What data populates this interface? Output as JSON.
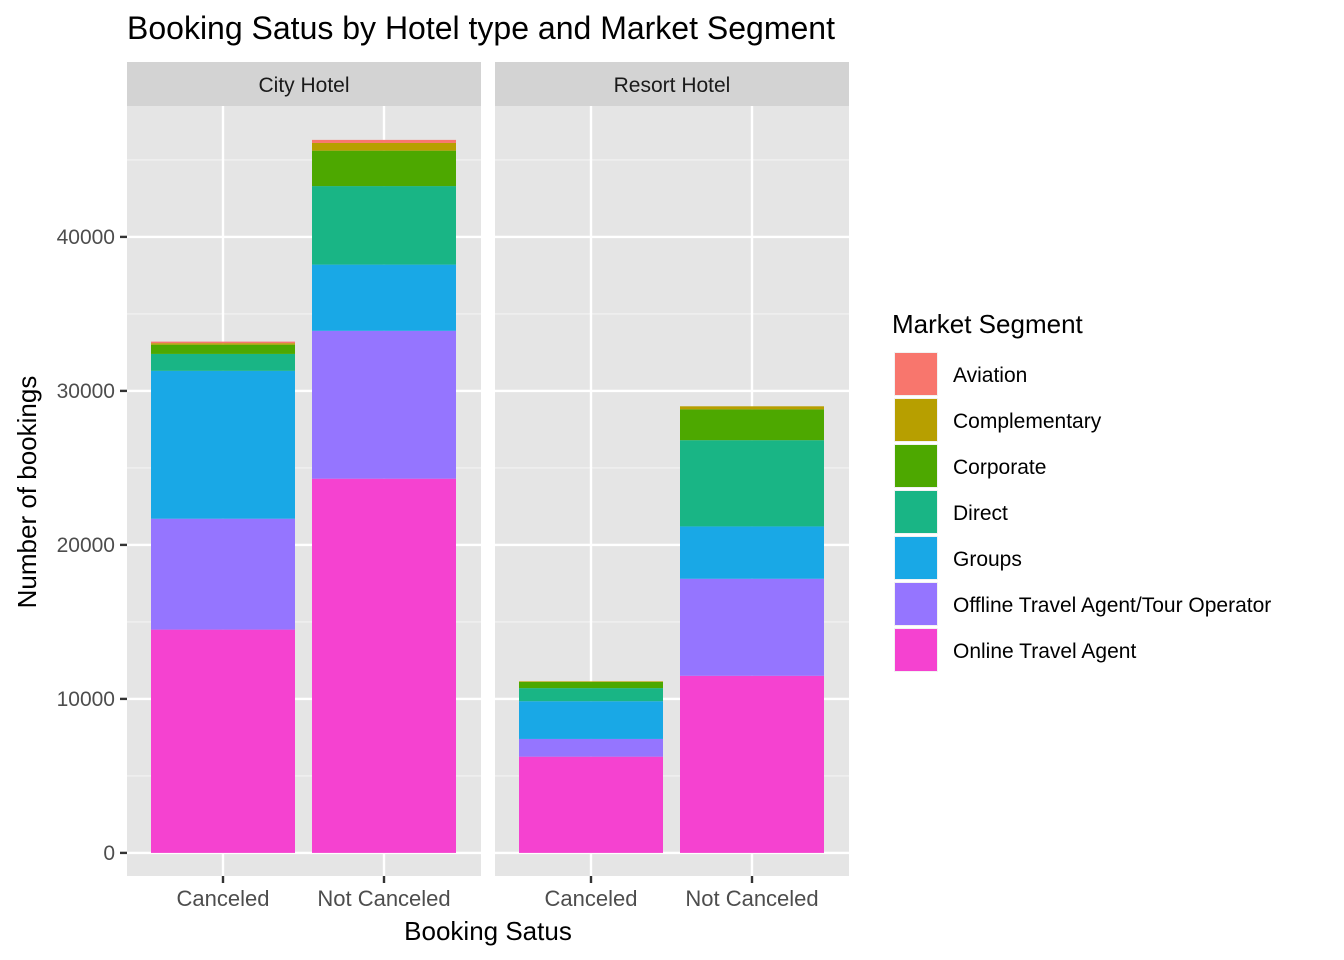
{
  "chart_data": {
    "type": "bar",
    "stacked": true,
    "title": "Booking Satus by Hotel type and Market Segment",
    "xlabel": "Booking Satus",
    "ylabel": "Number of bookings",
    "ylim": [
      -1500,
      48500
    ],
    "yticks": [
      0,
      10000,
      20000,
      30000,
      40000
    ],
    "ytick_labels": [
      "0",
      "10000",
      "20000",
      "30000",
      "40000"
    ],
    "grid": true,
    "categories": [
      "Canceled",
      "Not Canceled"
    ],
    "legend": {
      "title": "Market Segment",
      "position": "right"
    },
    "series_order": [
      "Aviation",
      "Complementary",
      "Corporate",
      "Direct",
      "Groups",
      "Offline Travel Agent/Tour Operator",
      "Online Travel Agent"
    ],
    "colors": {
      "Aviation": "#F8766D",
      "Complementary": "#B79F00",
      "Corporate": "#4DA800",
      "Direct": "#19B585",
      "Groups": "#19A8E6",
      "Offline Travel Agent/Tour Operator": "#9575FF",
      "Online Travel Agent": "#F542D0"
    },
    "panels": [
      {
        "name": "City Hotel",
        "bars": [
          {
            "category": "Canceled",
            "segments": {
              "Online Travel Agent": 14500,
              "Offline Travel Agent/Tour Operator": 7200,
              "Groups": 9600,
              "Direct": 1100,
              "Corporate": 600,
              "Complementary": 100,
              "Aviation": 100
            }
          },
          {
            "category": "Not Canceled",
            "segments": {
              "Online Travel Agent": 24300,
              "Offline Travel Agent/Tour Operator": 9600,
              "Groups": 4300,
              "Direct": 5100,
              "Corporate": 2300,
              "Complementary": 500,
              "Aviation": 200
            }
          }
        ]
      },
      {
        "name": "Resort Hotel",
        "bars": [
          {
            "category": "Canceled",
            "segments": {
              "Online Travel Agent": 6250,
              "Offline Travel Agent/Tour Operator": 1150,
              "Groups": 2450,
              "Direct": 850,
              "Corporate": 400,
              "Complementary": 40,
              "Aviation": 0
            }
          },
          {
            "category": "Not Canceled",
            "segments": {
              "Online Travel Agent": 11500,
              "Offline Travel Agent/Tour Operator": 6300,
              "Groups": 3400,
              "Direct": 5600,
              "Corporate": 2000,
              "Complementary": 200,
              "Aviation": 0
            }
          }
        ]
      }
    ]
  }
}
